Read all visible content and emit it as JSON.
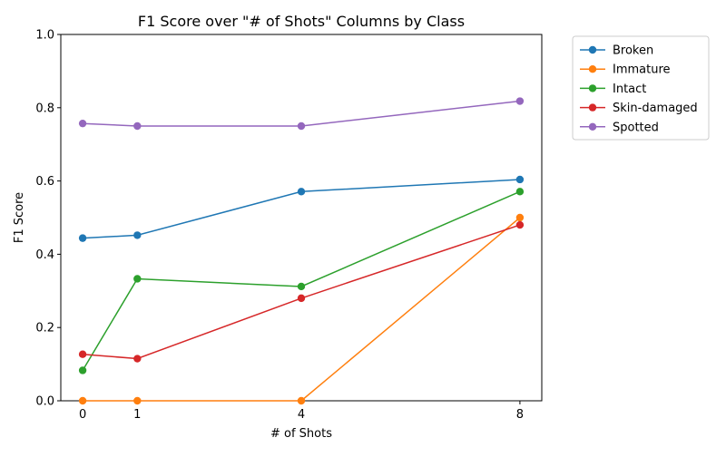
{
  "chart_data": {
    "type": "line",
    "title": "F1 Score over \"# of Shots\" Columns by Class",
    "xlabel": "# of Shots",
    "ylabel": "F1 Score",
    "x": [
      0,
      1,
      4,
      8
    ],
    "xticks": [
      0,
      1,
      4,
      8
    ],
    "xlim": [
      -0.4,
      8.4
    ],
    "yticks": [
      0.0,
      0.2,
      0.4,
      0.6,
      0.8,
      1.0
    ],
    "ylim": [
      0.0,
      1.0
    ],
    "legend_position": "outside-top-right",
    "grid": false,
    "series": [
      {
        "name": "Broken",
        "color": "#1f77b4",
        "values": [
          0.444,
          0.452,
          0.571,
          0.604
        ]
      },
      {
        "name": "Immature",
        "color": "#ff7f0e",
        "values": [
          0.0,
          0.0,
          0.0,
          0.5
        ]
      },
      {
        "name": "Intact",
        "color": "#2ca02c",
        "values": [
          0.083,
          0.333,
          0.312,
          0.571
        ]
      },
      {
        "name": "Skin-damaged",
        "color": "#d62728",
        "values": [
          0.127,
          0.115,
          0.28,
          0.48
        ]
      },
      {
        "name": "Spotted",
        "color": "#9467bd",
        "values": [
          0.757,
          0.75,
          0.75,
          0.818
        ]
      }
    ]
  }
}
